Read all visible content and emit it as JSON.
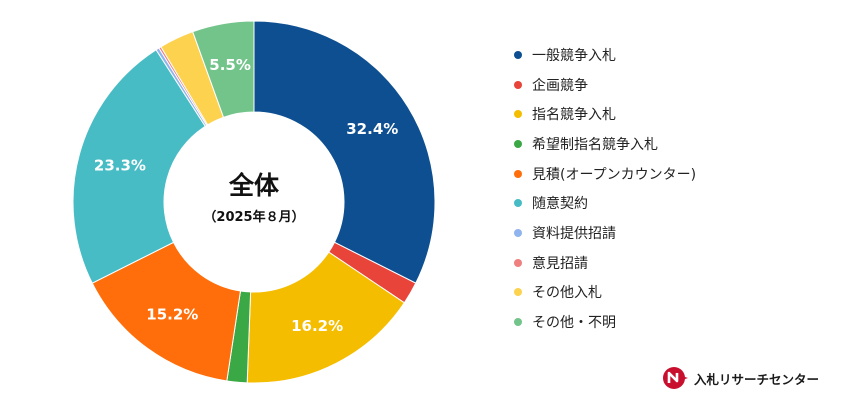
{
  "chart_data": {
    "type": "pie",
    "title": "全体",
    "subtitle": "（2025年８月）",
    "legend_position": "right",
    "slices": [
      {
        "name": "一般競争入札",
        "value": 32.4,
        "label": "32.4%",
        "color": "#0e4f91"
      },
      {
        "name": "企画競争",
        "value": 2.0,
        "label": "",
        "color": "#e8443a"
      },
      {
        "name": "指名競争入札",
        "value": 16.2,
        "label": "16.2%",
        "color": "#f5bd00"
      },
      {
        "name": "希望制指名競争入札",
        "value": 1.8,
        "label": "",
        "color": "#3aa845"
      },
      {
        "name": "見積(オープンカウンター)",
        "value": 15.2,
        "label": "15.2%",
        "color": "#ff6e0a"
      },
      {
        "name": "随意契約",
        "value": 23.3,
        "label": "23.3%",
        "color": "#47bcc5"
      },
      {
        "name": "資料提供招請",
        "value": 0.3,
        "label": "",
        "color": "#8fb4ee"
      },
      {
        "name": "意見招請",
        "value": 0.2,
        "label": "",
        "color": "#f07f7f"
      },
      {
        "name": "その他入札",
        "value": 3.1,
        "label": "",
        "color": "#fdd24f"
      },
      {
        "name": "その他・不明",
        "value": 5.5,
        "label": "5.5%",
        "color": "#73c48b"
      }
    ]
  },
  "brand": {
    "name": "入札リサーチセンター",
    "logo_icon": "n-arrow-logo-icon",
    "logo_color": "#c8102e"
  }
}
